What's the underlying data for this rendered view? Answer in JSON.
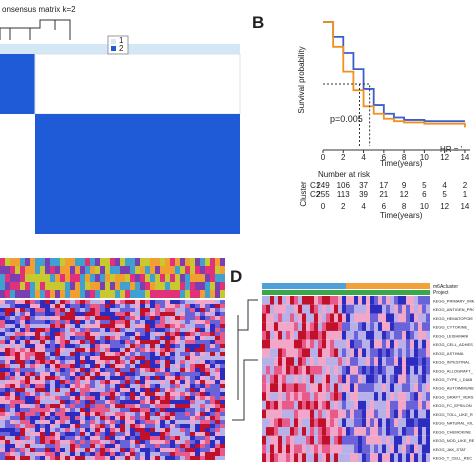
{
  "panel_a": {
    "title": "onsensus matrix k=2",
    "legend": [
      "1",
      "2"
    ]
  },
  "panel_b": {
    "label": "B",
    "ylabel": "Survival probability",
    "xlabel": "Time(years)",
    "p_value": "p=0.005",
    "hr": "HR = '",
    "xticks": [
      0,
      2,
      4,
      6,
      8,
      10,
      12,
      14
    ],
    "xlim": [
      0,
      14.5
    ],
    "ylim": [
      0,
      1
    ],
    "x": [
      0,
      1,
      2,
      3,
      4,
      5,
      6,
      7,
      8,
      10,
      12,
      14
    ],
    "series": [
      {
        "name": "C1",
        "color": "#3a5fcd",
        "values": [
          1,
          0.88,
          0.75,
          0.62,
          0.46,
          0.33,
          0.26,
          0.23,
          0.21,
          0.2,
          0.2,
          0.2
        ]
      },
      {
        "name": "C2",
        "color": "#f0901e",
        "values": [
          1,
          0.8,
          0.6,
          0.45,
          0.32,
          0.26,
          0.22,
          0.2,
          0.19,
          0.18,
          0.18,
          0.15
        ]
      }
    ],
    "risk_title": "Number at risk",
    "risk_ylabel": "Cluster",
    "risk_xlabel": "Time(years)",
    "risk": [
      [
        249,
        106,
        37,
        17,
        9,
        5,
        4,
        2
      ],
      [
        255,
        113,
        39,
        21,
        12,
        6,
        5,
        1
      ]
    ]
  },
  "panel_d": {
    "label": "D",
    "annot": [
      "m6Acluster",
      "Project"
    ],
    "rows": [
      "KEGG_PRIMARY_IMM",
      "KEGG_ANTIGEN_PRO",
      "KEGG_HEMATOPOIE",
      "KEGG_CYTOKINE_",
      "KEGG_LEISHMANI",
      "KEGG_CELL_ADHES",
      "KEGG_ASTHMA",
      "KEGG_INTESTINAL",
      "KEGG_ALLOGRAFT_",
      "KEGG_TYPE_I_DIAB",
      "KEGG_AUTOIMMUNE",
      "KEGG_GRAFT_VERS",
      "KEGG_FC_EPSILON",
      "KEGG_TOLL_LIKE_R",
      "KEGG_NATURAL_KIL",
      "KEGG_CHEMOKINE",
      "KEGG_NOD_LIKE_RE",
      "KEGG_JAK_STAT",
      "KEGG_T_CELL_REC"
    ]
  }
}
